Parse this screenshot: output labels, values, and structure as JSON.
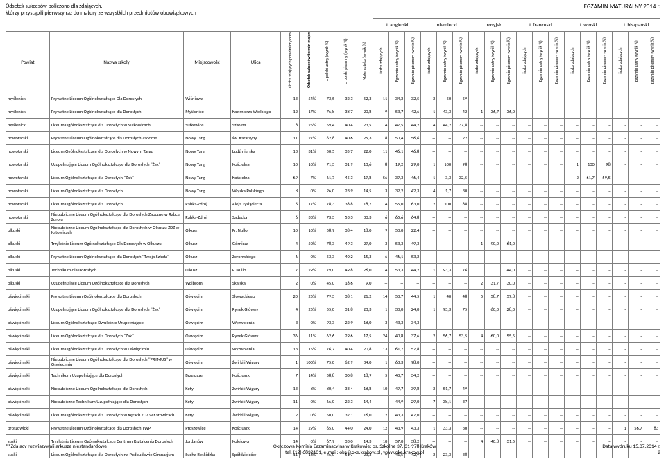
{
  "header": {
    "note1": "Odsetek sukcesów policzono dla zdających,",
    "note2": "którzy przystąpili pierwszy raz do matury ze wszystkich przedmiotów obowiązkowych",
    "title": "EGZAMIN MATURALNY 2014 r."
  },
  "footer": {
    "left": "**Zdający rozwiązywali arkusze niestandardowe",
    "center1": "Okręgowa Komisja Egzaminacyjna w Krakowie: os. Szkolne 37, 31-978 Kraków",
    "center2": "tel. (12) 6832101, e-mail: oke@oke.krakow.pl, www.oke.krakow.pl",
    "right1": "Data wydruku 15.07.2014 r.",
    "right2": "2"
  },
  "langs": [
    "J. angielski",
    "J. niemiecki",
    "J. rosyjski",
    "J. francuski",
    "J. włoski",
    "J. hiszpański"
  ],
  "cols": {
    "powiat": "Powiat",
    "szkola": "Nazwa szkoły",
    "miejsc": "Miejscowość",
    "ulica": "Ulica",
    "zdajacy": "Liczba zdających przedmioty obowiązkowe",
    "sukces": "Odsetek sukcesów termin majowy",
    "jpust": "J. polski ustny (wynik %)",
    "jppis": "J. polski pisemny (wynik %)",
    "mat": "Matematyka (wynik %)",
    "lz": "liczba zdających",
    "eu": "Egzamin ustny (wynik %)",
    "ep": "Egzamin pisemny (wynik %)"
  },
  "rows": [
    [
      "myślenicki",
      "Prywatne Liceum Ogólnokształcące Dla Dorosłych",
      "Wiśniowa",
      "",
      "13",
      "54%",
      "73,5",
      "32,3",
      "52,3",
      "11",
      "34,2",
      "32,5",
      "2",
      "50",
      "59",
      "--",
      "--",
      "--",
      "--",
      "--",
      "--",
      "--",
      "--",
      "--",
      "--",
      "--",
      "--",
      "--",
      "--",
      "--"
    ],
    [
      "myślenicki",
      "Prywatne Liceum Ogólnokształcące dla Dorosłych",
      "Myślenice",
      "Kazimierza Wielkiego",
      "12",
      "17%",
      "76,8",
      "38,7",
      "20,8",
      "9",
      "53,7",
      "42,6",
      "1",
      "43,3",
      "42",
      "1",
      "36,7",
      "36,0",
      "--",
      "--",
      "--",
      "--",
      "--",
      "--",
      "--",
      "--",
      "--"
    ],
    [
      "myślenicki",
      "Liceum Ogólnokształcące dla Dorosłych w Sułkowicach",
      "Sułkowice",
      "Szkolna",
      "8",
      "25%",
      "59,4",
      "40,4",
      "23,5",
      "4",
      "47,5",
      "44,2",
      "4",
      "44,2",
      "37,8",
      "--",
      "--",
      "--",
      "--",
      "--",
      "--",
      "--",
      "--",
      "--",
      "--",
      "--",
      "--"
    ],
    [
      "nowotarski",
      "Prywatne Liceum Ogólnokształcące dla Dorosłych Zaoczne",
      "Nowy Targ",
      "św. Katarzyny",
      "11",
      "27%",
      "62,8",
      "40,6",
      "25,3",
      "8",
      "50,4",
      "56,6",
      "--",
      "--",
      "22",
      "--",
      "--",
      "--",
      "--",
      "--",
      "--",
      "--",
      "--",
      "--",
      "--",
      "--",
      "--"
    ],
    [
      "nowotarski",
      "Liceum Ogólnokształcące dla Dorosłych w Nowym Targu",
      "Nowy Targ",
      "Ludźmierska",
      "13",
      "31%",
      "50,5",
      "35,7",
      "22,0",
      "11",
      "46,1",
      "46,8",
      "--",
      "--",
      "--",
      "--",
      "--",
      "--",
      "--",
      "--",
      "--",
      "--",
      "--",
      "--",
      "--",
      "--",
      "--"
    ],
    [
      "nowotarski",
      "Uzupełniające Liceum Ogólnokształcące dla Dorosłych \"Żak\"",
      "Nowy Targ",
      "Kościelna",
      "10",
      "10%",
      "71,3",
      "31,9",
      "13,6",
      "8",
      "19,2",
      "29,0",
      "1",
      "100",
      "98",
      "--",
      "--",
      "--",
      "--",
      "--",
      "--",
      "1",
      "100",
      "98",
      "--",
      "--",
      "--"
    ],
    [
      "nowotarski",
      "Liceum Ogólnokształcące dla Dorosłych \"Żak\"",
      "Nowy Targ",
      "Kościelna",
      "69",
      "7%",
      "61,7",
      "45,3",
      "19,8",
      "56",
      "39,3",
      "46,4",
      "1",
      "3,3",
      "32,5",
      "--",
      "--",
      "--",
      "--",
      "--",
      "--",
      "2",
      "61,7",
      "59,5",
      "--",
      "--",
      "--"
    ],
    [
      "nowotarski",
      "Liceum Ogólnokształcące dla Dorosłych",
      "Nowy Targ",
      "Wojska Polskiego",
      "8",
      "0%",
      "26,0",
      "23,9",
      "14,5",
      "3",
      "32,2",
      "42,3",
      "4",
      "1,7",
      "30",
      "--",
      "--",
      "--",
      "--",
      "--",
      "--",
      "--",
      "--",
      "--",
      "--",
      "--",
      "--"
    ],
    [
      "nowotarski",
      "Liceum Ogólnokształcące dla Dorosłych",
      "Rabka-Zdrój",
      "Aleja Tysiąclecia",
      "6",
      "17%",
      "78,3",
      "38,8",
      "18,7",
      "4",
      "55,0",
      "63,0",
      "2",
      "100",
      "88",
      "--",
      "--",
      "--",
      "--",
      "--",
      "--",
      "--",
      "--",
      "--",
      "--",
      "--",
      "--"
    ],
    [
      "nowotarski",
      "Niepubliczne Liceum Ogólnokształcące dla Dorosłych Zaoczne w Rabce Zdroju",
      "Rabka-Zdrój",
      "Sądecka",
      "6",
      "33%",
      "73,3",
      "53,3",
      "30,3",
      "6",
      "65,6",
      "64,8",
      "--",
      "--",
      "--",
      "--",
      "--",
      "--",
      "--",
      "--",
      "--",
      "--",
      "--",
      "--",
      "--",
      "--",
      "--"
    ],
    [
      "olkuski",
      "Niepubliczne Liceum Ogólnokształcące dla Dorosłych w Olkuszu ZDZ w Katowicach",
      "Olkusz",
      "Fr. Nullo",
      "10",
      "10%",
      "58,9",
      "38,4",
      "18,0",
      "9",
      "50,0",
      "22,4",
      "--",
      "--",
      "--",
      "--",
      "--",
      "--",
      "--",
      "--",
      "--",
      "--",
      "--",
      "--",
      "--",
      "--",
      "--"
    ],
    [
      "olkuski",
      "Trzyletnie Liceum Ogólnokształcące Dla Dorosłych w Olkuszu",
      "Olkusz",
      "Górnicza",
      "4",
      "50%",
      "78,3",
      "49,3",
      "29,0",
      "3",
      "53,3",
      "49,3",
      "--",
      "--",
      "--",
      "1",
      "90,0",
      "61,0",
      "--",
      "--",
      "--",
      "--",
      "--",
      "--",
      "--",
      "--",
      "--"
    ],
    [
      "olkuski",
      "Prywatne Liceum Ogólnokształcące dla Dorosłych \"Twoja Szkoła\"",
      "Olkusz",
      "Żeromskiego",
      "6",
      "0%",
      "53,3",
      "40,2",
      "15,3",
      "6",
      "46,1",
      "53,2",
      "--",
      "--",
      "--",
      "--",
      "--",
      "--",
      "--",
      "--",
      "--",
      "--",
      "--",
      "--",
      "--",
      "--",
      "--"
    ],
    [
      "olkuski",
      "Technikum dla Dorosłych",
      "Olkusz",
      "F. Nullo",
      "7",
      "29%",
      "79,0",
      "49,8",
      "26,0",
      "4",
      "53,3",
      "44,2",
      "1",
      "93,3",
      "76",
      "",
      "",
      "44,0",
      "--",
      "--",
      "--",
      "--",
      "--",
      "--",
      "--",
      "--",
      "--"
    ],
    [
      "olkuski",
      "Uzupełniające Liceum Ogólnokształcące dla Dorosłych",
      "Wolbrom",
      "Skalska",
      "2",
      "0%",
      "45,0",
      "18,6",
      "9,0",
      "--",
      "--",
      "--",
      "--",
      "--",
      "--",
      "2",
      "31,7",
      "30,0",
      "--",
      "--",
      "--",
      "--",
      "--",
      "--",
      "--",
      "--",
      "--"
    ],
    [
      "oświęcimski",
      "Prywatne Liceum Ogólnokształcące dla Dorosłych",
      "Oświęcim",
      "Słowackiego",
      "20",
      "25%",
      "79,3",
      "38,1",
      "21,2",
      "14",
      "50,7",
      "44,5",
      "1",
      "40",
      "48",
      "5",
      "58,7",
      "57,8",
      "--",
      "--",
      "--",
      "--",
      "--",
      "--",
      "--",
      "--",
      "--"
    ],
    [
      "oświęcimski",
      "Uzupełniające Liceum Ogólnokształcące dla Dorosłych \"Żak\"",
      "Oświęcim",
      "Rynek Główny",
      "4",
      "25%",
      "55,0",
      "31,8",
      "23,3",
      "1",
      "30,0",
      "24,0",
      "1",
      "93,3",
      "75",
      "",
      "60,0",
      "28,0",
      "--",
      "--",
      "--",
      "--",
      "--",
      "--",
      "--",
      "--",
      "--"
    ],
    [
      "oświęcimski",
      "Liceum Ogólnokształcące Dwuletnie Uzupełniające",
      "Oświęcim",
      "Wyzwolenia",
      "3",
      "0%",
      "93,3",
      "22,9",
      "18,0",
      "3",
      "43,3",
      "34,3",
      "--",
      "--",
      "--",
      "--",
      "--",
      "--",
      "--",
      "--",
      "--",
      "--",
      "--",
      "--",
      "--",
      "--",
      "--"
    ],
    [
      "oświęcimski",
      "Liceum Ogólnokształcące dla Dorosłych \"Żak\"",
      "Oświęcim",
      "Rynek Główny",
      "36",
      "11%",
      "62,6",
      "29,6",
      "17,5",
      "24",
      "40,8",
      "37,6",
      "2",
      "56,7",
      "53,5",
      "4",
      "60,0",
      "55,5",
      "--",
      "--",
      "--",
      "--",
      "--",
      "--",
      "--",
      "--",
      "--"
    ],
    [
      "oświęcimski",
      "Liceum Ogólnokształcące dla Dorosłych w Oświęcimiu",
      "Oświęcim",
      "Wyzwolenia",
      "13",
      "15%",
      "76,7",
      "40,4",
      "20,8",
      "13",
      "61,7",
      "57,8",
      "--",
      "--",
      "--",
      "--",
      "--",
      "--",
      "--",
      "--",
      "--",
      "--",
      "--",
      "--",
      "--",
      "--",
      "--"
    ],
    [
      "oświęcimski",
      "Niepubliczne Liceum Ogólnokształcące dla Dorosłych \"PRYMUS\" w Oświęcimiu",
      "Oświęcim",
      "Żwirki i Wigury",
      "1",
      "100%",
      "75,0",
      "62,9",
      "34,0",
      "1",
      "63,3",
      "98,0",
      "--",
      "--",
      "--",
      "--",
      "--",
      "--",
      "--",
      "--",
      "--",
      "--",
      "--",
      "--",
      "--",
      "--",
      "--"
    ],
    [
      "oświęcimski",
      "Technikum Uzupełniające dla Dorosłych",
      "Brzeszcze",
      "Kościuszki",
      "7",
      "14%",
      "58,8",
      "30,8",
      "18,9",
      "5",
      "40,7",
      "34,2",
      "--",
      "--",
      "--",
      "--",
      "--",
      "--",
      "--",
      "--",
      "--",
      "--",
      "--",
      "--",
      "--",
      "--",
      "--"
    ],
    [
      "oświęcimski",
      "Niepubliczne Liceum Ogólnokształcące dla Dorosłych",
      "Kęty",
      "Żwirki i Wigury",
      "13",
      "8%",
      "80,4",
      "33,4",
      "18,8",
      "10",
      "49,7",
      "39,8",
      "2",
      "51,7",
      "49",
      "--",
      "--",
      "--",
      "--",
      "--",
      "--",
      "--",
      "--",
      "--",
      "--",
      "--",
      "--"
    ],
    [
      "oświęcimski",
      "Niepubliczne Technikum Uzupełniające dla Dorosłych",
      "Kęty",
      "Żwirki i Wigury",
      "11",
      "0%",
      "66,0",
      "22,3",
      "14,4",
      "--",
      "44,9",
      "29,0",
      "7",
      "38,1",
      "37",
      "--",
      "--",
      "--",
      "--",
      "--",
      "--",
      "--",
      "--",
      "--",
      "--",
      "--",
      "--"
    ],
    [
      "oświęcimski",
      "Liceum Ogólnokształcące dla Dorosłych w Kętach ZDZ w Katowicach",
      "Kęty",
      "Żwirki i Wigury",
      "2",
      "0%",
      "50,0",
      "32,1",
      "16,0",
      "2",
      "43,3",
      "47,0",
      "--",
      "--",
      "--",
      "--",
      "--",
      "--",
      "--",
      "--",
      "--",
      "--",
      "--",
      "--",
      "--",
      "--",
      "--"
    ],
    [
      "proszowicki",
      "Prywatne Liceum Ogólnokształcące dla Dorosłych TWP",
      "Proszowice",
      "Kościuszki",
      "14",
      "29%",
      "65,0",
      "44,0",
      "24,0",
      "12",
      "43,9",
      "43,3",
      "1",
      "33,3",
      "30",
      "--",
      "--",
      "--",
      "--",
      "--",
      "--",
      "--",
      "--",
      "--",
      "1",
      "56,7",
      "83"
    ],
    [
      "suski",
      "Trzyletnie Liceum Ogólnokształcące Centrum Kształcenia Dorosłych",
      "Jordanów",
      "Kolejowa",
      "14",
      "0%",
      "67,9",
      "33,0",
      "14,3",
      "10",
      "57,0",
      "38,2",
      "--",
      "--",
      "--",
      "4",
      "40,8",
      "31,5",
      "--",
      "--",
      "--",
      "--",
      "--",
      "--",
      "--",
      "--",
      "--"
    ],
    [
      "suski",
      "Liceum Ogólnokształcące dla Dorosłych na Podbudowie Gimnazjum",
      "Sucha Beskidzka",
      "Spółdzielców",
      "11",
      "18%",
      "46,0",
      "51,7",
      "23,3",
      "9",
      "41,5",
      "42,9",
      "2",
      "23,3",
      "38",
      "--",
      "--",
      "--",
      "--",
      "--",
      "--",
      "--",
      "--",
      "--",
      "--",
      "--",
      "--"
    ]
  ]
}
